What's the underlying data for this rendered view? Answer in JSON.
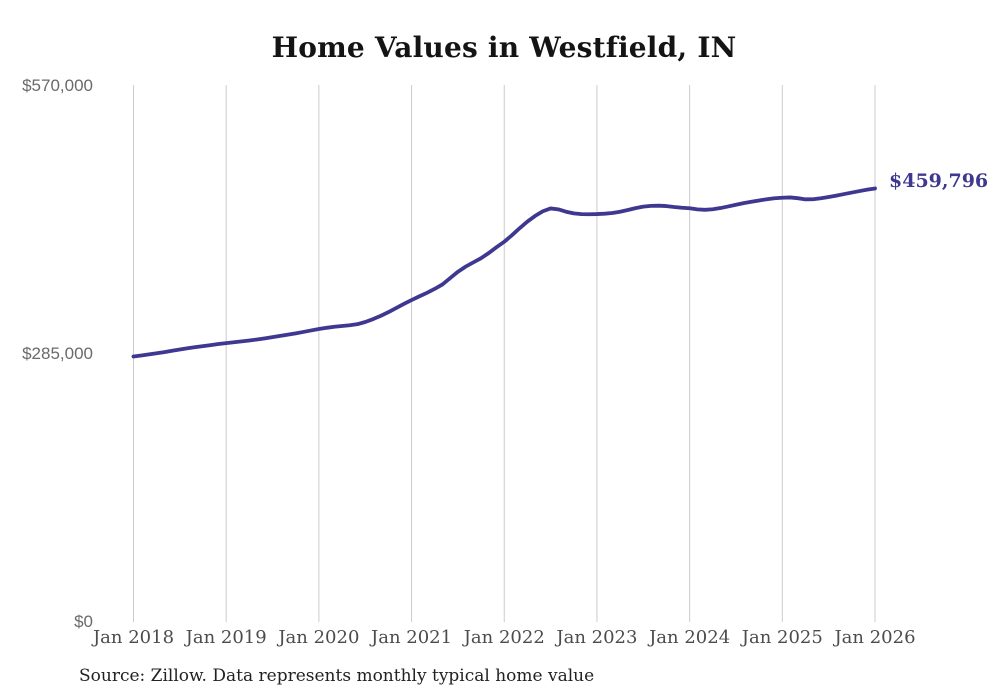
{
  "title": "Home Values in Westfield, IN",
  "source_note": "Source: Zillow. Data represents monthly typical home value",
  "colors": {
    "line": "#3e3891",
    "grid": "#cccccc",
    "title_text": "#141414",
    "y_tick_text": "#6a6a6a",
    "x_tick_text": "#4c4c4c",
    "end_label_text": "#3e3891",
    "source_text": "#222222",
    "background": "#ffffff"
  },
  "chart_data": {
    "type": "line",
    "title": "Home Values in Westfield, IN",
    "xlabel": "",
    "ylabel": "",
    "ylim": [
      0,
      570000
    ],
    "grid": "vertical-only",
    "legend": "none",
    "x_tick_labels": [
      "Jan 2018",
      "Jan 2019",
      "Jan 2020",
      "Jan 2021",
      "Jan 2022",
      "Jan 2023",
      "Jan 2024",
      "Jan 2025",
      "Jan 2026"
    ],
    "y_ticks": [
      {
        "label": "$0",
        "value": 0
      },
      {
        "label": "$285,000",
        "value": 285000
      },
      {
        "label": "$570,000",
        "value": 570000
      }
    ],
    "end_annotation": {
      "label": "$459,796",
      "value": 459796
    },
    "x_monthly_start": "2018-01",
    "x_monthly_end": "2026-01",
    "series": [
      {
        "name": "Typical home value",
        "monthly_values": [
          280700,
          281800,
          283000,
          284200,
          285400,
          286800,
          288200,
          289500,
          290700,
          291800,
          292900,
          294000,
          295000,
          295900,
          296800,
          297800,
          298900,
          300100,
          301400,
          302700,
          304000,
          305400,
          306900,
          308500,
          310000,
          311300,
          312400,
          313200,
          314000,
          315200,
          317500,
          320500,
          324000,
          328000,
          332300,
          336700,
          340900,
          344800,
          348600,
          352800,
          357500,
          364300,
          371000,
          376500,
          381000,
          385500,
          391000,
          397200,
          403000,
          410000,
          417500,
          424500,
          430500,
          435500,
          438500,
          437500,
          435000,
          433200,
          432400,
          432300,
          432500,
          432900,
          433600,
          435000,
          436800,
          438800,
          440400,
          441200,
          441400,
          441000,
          440000,
          439200,
          438700,
          437500,
          437000,
          437600,
          438900,
          440600,
          442400,
          444100,
          445600,
          447000,
          448300,
          449300,
          449900,
          450200,
          449400,
          448200,
          448300,
          449300,
          450700,
          452200,
          453800,
          455400,
          457000,
          458500,
          459796
        ]
      }
    ]
  }
}
